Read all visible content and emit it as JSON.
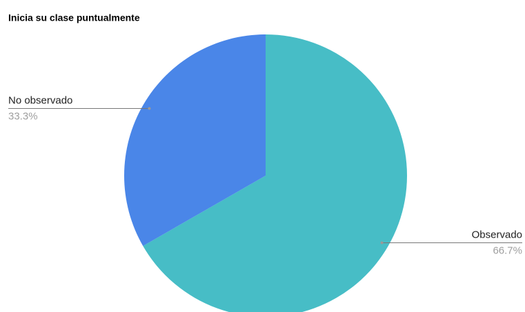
{
  "chart_data": {
    "type": "pie",
    "title": "Inicia su clase puntualmente",
    "categories": [
      "Observado",
      "No observado"
    ],
    "values": [
      66.7,
      33.3
    ],
    "value_labels": [
      "66.7%",
      "33.3%"
    ],
    "colors": [
      "#47bdc6",
      "#4a86e8"
    ]
  }
}
